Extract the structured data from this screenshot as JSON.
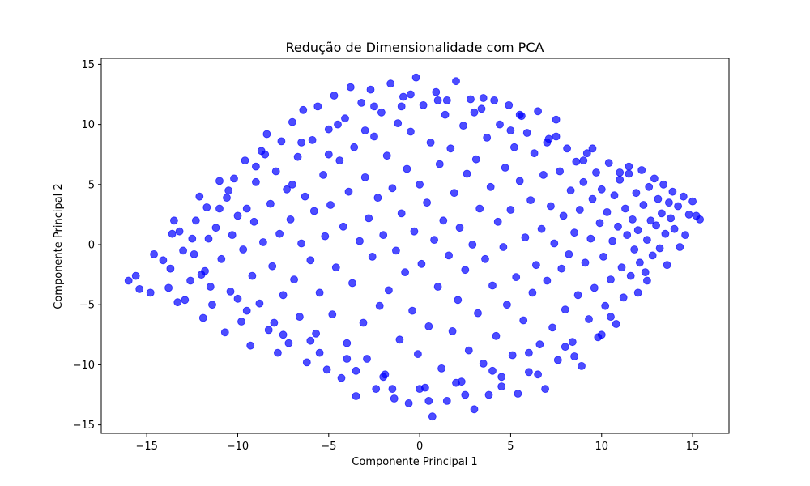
{
  "chart_data": {
    "type": "scatter",
    "title": "Redução de Dimensionalidade com PCA",
    "xlabel": "Componente Principal 1",
    "ylabel": "Componente Principal 2",
    "xlim": [
      -17.5,
      17
    ],
    "ylim": [
      -15.7,
      15.5
    ],
    "xticks": [
      -15,
      -10,
      -5,
      0,
      5,
      10,
      15
    ],
    "yticks": [
      -15,
      -10,
      -5,
      0,
      5,
      10,
      15
    ],
    "xtick_labels": [
      "−15",
      "−10",
      "−5",
      "0",
      "5",
      "10",
      "15"
    ],
    "ytick_labels": [
      "−15",
      "−10",
      "−5",
      "0",
      "5",
      "10",
      "15"
    ],
    "grid": false,
    "legend": "none",
    "color": "#0000ff",
    "alpha": 0.7,
    "series": [
      {
        "values": [
          [
            -16.0,
            -3.0
          ],
          [
            -15.6,
            -2.6
          ],
          [
            -15.4,
            -3.7
          ],
          [
            -14.8,
            -4.0
          ],
          [
            -14.6,
            -0.8
          ],
          [
            -14.1,
            -1.3
          ],
          [
            -13.8,
            -3.6
          ],
          [
            -13.7,
            -2.0
          ],
          [
            -13.6,
            0.9
          ],
          [
            -13.5,
            2.0
          ],
          [
            -13.3,
            -4.8
          ],
          [
            -13.2,
            1.1
          ],
          [
            -12.9,
            -4.6
          ],
          [
            -12.6,
            -3.0
          ],
          [
            -12.4,
            -0.8
          ],
          [
            -12.3,
            2.0
          ],
          [
            -12.1,
            4.0
          ],
          [
            -11.9,
            -6.1
          ],
          [
            -11.8,
            -2.2
          ],
          [
            -11.7,
            3.1
          ],
          [
            -11.6,
            0.5
          ],
          [
            -11.4,
            -5.0
          ],
          [
            -11.2,
            1.4
          ],
          [
            -11.0,
            5.3
          ],
          [
            -10.9,
            -1.2
          ],
          [
            -10.7,
            -7.3
          ],
          [
            -10.6,
            3.9
          ],
          [
            -10.4,
            -3.9
          ],
          [
            -10.3,
            0.8
          ],
          [
            -10.2,
            5.5
          ],
          [
            -10.0,
            2.4
          ],
          [
            -9.8,
            -6.4
          ],
          [
            -9.7,
            -0.4
          ],
          [
            -9.6,
            7.0
          ],
          [
            -9.5,
            3.0
          ],
          [
            -9.3,
            -8.4
          ],
          [
            -9.2,
            -2.6
          ],
          [
            -9.1,
            1.9
          ],
          [
            -9.0,
            5.2
          ],
          [
            -8.8,
            -4.9
          ],
          [
            -8.7,
            7.8
          ],
          [
            -8.6,
            0.2
          ],
          [
            -8.4,
            9.2
          ],
          [
            -8.3,
            -7.1
          ],
          [
            -8.2,
            3.4
          ],
          [
            -8.1,
            -1.8
          ],
          [
            -7.9,
            6.1
          ],
          [
            -7.8,
            -9.0
          ],
          [
            -7.7,
            0.9
          ],
          [
            -7.6,
            8.6
          ],
          [
            -7.5,
            -4.2
          ],
          [
            -7.3,
            4.6
          ],
          [
            -7.2,
            -8.2
          ],
          [
            -7.1,
            2.1
          ],
          [
            -7.0,
            10.2
          ],
          [
            -6.9,
            -2.9
          ],
          [
            -6.7,
            7.3
          ],
          [
            -6.6,
            -6.0
          ],
          [
            -6.5,
            0.1
          ],
          [
            -6.4,
            11.2
          ],
          [
            -6.3,
            4.0
          ],
          [
            -6.2,
            -9.8
          ],
          [
            -6.0,
            -1.3
          ],
          [
            -5.9,
            8.7
          ],
          [
            -5.8,
            2.8
          ],
          [
            -5.7,
            -7.4
          ],
          [
            -5.6,
            11.5
          ],
          [
            -5.5,
            -4.0
          ],
          [
            -5.3,
            5.8
          ],
          [
            -5.2,
            0.7
          ],
          [
            -5.1,
            -10.4
          ],
          [
            -5.0,
            9.6
          ],
          [
            -4.9,
            3.3
          ],
          [
            -4.8,
            -5.8
          ],
          [
            -4.7,
            12.4
          ],
          [
            -4.6,
            -1.9
          ],
          [
            -4.4,
            7.0
          ],
          [
            -4.3,
            -11.1
          ],
          [
            -4.2,
            1.5
          ],
          [
            -4.1,
            10.5
          ],
          [
            -4.0,
            -8.2
          ],
          [
            -3.9,
            4.4
          ],
          [
            -3.8,
            13.1
          ],
          [
            -3.7,
            -3.2
          ],
          [
            -3.6,
            8.1
          ],
          [
            -3.5,
            -12.6
          ],
          [
            -3.3,
            0.3
          ],
          [
            -3.2,
            11.8
          ],
          [
            -3.1,
            -6.5
          ],
          [
            -3.0,
            5.6
          ],
          [
            -2.9,
            -9.5
          ],
          [
            -2.8,
            2.2
          ],
          [
            -2.7,
            12.9
          ],
          [
            -2.6,
            -1.0
          ],
          [
            -2.5,
            9.0
          ],
          [
            -2.4,
            -12.0
          ],
          [
            -2.3,
            3.9
          ],
          [
            -2.2,
            -5.1
          ],
          [
            -2.1,
            11.0
          ],
          [
            -2.0,
            0.8
          ],
          [
            -1.9,
            -10.8
          ],
          [
            -1.8,
            7.4
          ],
          [
            -1.7,
            -3.8
          ],
          [
            -1.6,
            13.4
          ],
          [
            -1.5,
            4.7
          ],
          [
            -1.4,
            -12.8
          ],
          [
            -1.3,
            -0.5
          ],
          [
            -1.2,
            10.1
          ],
          [
            -1.1,
            -7.9
          ],
          [
            -1.0,
            2.6
          ],
          [
            -0.9,
            12.3
          ],
          [
            -0.8,
            -2.3
          ],
          [
            -0.7,
            6.3
          ],
          [
            -0.6,
            -13.2
          ],
          [
            -0.5,
            9.4
          ],
          [
            -0.4,
            -5.5
          ],
          [
            -0.3,
            1.1
          ],
          [
            -0.2,
            13.9
          ],
          [
            -0.1,
            -9.1
          ],
          [
            0.0,
            5.0
          ],
          [
            0.1,
            -1.6
          ],
          [
            0.2,
            11.6
          ],
          [
            0.3,
            -11.9
          ],
          [
            0.4,
            3.5
          ],
          [
            0.5,
            -6.8
          ],
          [
            0.6,
            8.5
          ],
          [
            0.7,
            -14.3
          ],
          [
            0.8,
            0.4
          ],
          [
            0.9,
            12.7
          ],
          [
            1.0,
            -3.5
          ],
          [
            1.1,
            6.7
          ],
          [
            1.2,
            -10.3
          ],
          [
            1.3,
            2.0
          ],
          [
            1.4,
            10.8
          ],
          [
            1.5,
            -13.0
          ],
          [
            1.6,
            -0.9
          ],
          [
            1.7,
            8.0
          ],
          [
            1.8,
            -7.2
          ],
          [
            1.9,
            4.3
          ],
          [
            2.0,
            13.6
          ],
          [
            2.1,
            -4.6
          ],
          [
            2.2,
            1.4
          ],
          [
            2.3,
            -11.4
          ],
          [
            2.4,
            9.9
          ],
          [
            2.5,
            -2.1
          ],
          [
            2.6,
            5.9
          ],
          [
            2.7,
            -8.8
          ],
          [
            2.8,
            12.1
          ],
          [
            2.9,
            0.0
          ],
          [
            3.0,
            -13.7
          ],
          [
            3.1,
            7.1
          ],
          [
            3.2,
            -5.7
          ],
          [
            3.3,
            3.0
          ],
          [
            3.4,
            11.3
          ],
          [
            3.5,
            -9.9
          ],
          [
            3.6,
            -1.2
          ],
          [
            3.7,
            8.9
          ],
          [
            3.8,
            -12.5
          ],
          [
            3.9,
            4.8
          ],
          [
            4.0,
            -3.4
          ],
          [
            4.1,
            12.0
          ],
          [
            4.2,
            -7.6
          ],
          [
            4.3,
            1.9
          ],
          [
            4.4,
            10.0
          ],
          [
            4.5,
            -11.0
          ],
          [
            4.6,
            -0.2
          ],
          [
            4.7,
            6.4
          ],
          [
            4.8,
            -5.0
          ],
          [
            4.9,
            11.6
          ],
          [
            5.0,
            2.9
          ],
          [
            5.1,
            -9.2
          ],
          [
            5.2,
            8.1
          ],
          [
            5.3,
            -2.7
          ],
          [
            5.4,
            -12.4
          ],
          [
            5.5,
            5.3
          ],
          [
            5.6,
            10.7
          ],
          [
            5.7,
            -6.3
          ],
          [
            5.8,
            0.6
          ],
          [
            5.9,
            9.3
          ],
          [
            6.0,
            -10.6
          ],
          [
            6.1,
            3.7
          ],
          [
            6.2,
            -4.0
          ],
          [
            6.3,
            7.6
          ],
          [
            6.4,
            -1.7
          ],
          [
            6.5,
            11.1
          ],
          [
            6.6,
            -8.3
          ],
          [
            6.7,
            1.3
          ],
          [
            6.8,
            5.8
          ],
          [
            6.9,
            -12.0
          ],
          [
            7.0,
            -3.0
          ],
          [
            7.1,
            8.8
          ],
          [
            7.2,
            3.2
          ],
          [
            7.3,
            -6.9
          ],
          [
            7.4,
            0.1
          ],
          [
            7.5,
            10.4
          ],
          [
            7.6,
            -9.6
          ],
          [
            7.7,
            6.1
          ],
          [
            7.8,
            -2.0
          ],
          [
            7.9,
            2.4
          ],
          [
            8.0,
            -5.4
          ],
          [
            8.1,
            8.0
          ],
          [
            8.2,
            -0.8
          ],
          [
            8.3,
            4.5
          ],
          [
            8.4,
            -8.1
          ],
          [
            8.5,
            1.0
          ],
          [
            8.6,
            6.9
          ],
          [
            8.7,
            -4.2
          ],
          [
            8.8,
            2.9
          ],
          [
            8.9,
            -10.1
          ],
          [
            9.0,
            5.2
          ],
          [
            9.1,
            -1.5
          ],
          [
            9.2,
            7.6
          ],
          [
            9.3,
            -6.2
          ],
          [
            9.4,
            0.5
          ],
          [
            9.5,
            3.8
          ],
          [
            9.6,
            -3.6
          ],
          [
            9.7,
            6.0
          ],
          [
            9.8,
            -7.7
          ],
          [
            9.9,
            1.8
          ],
          [
            10.0,
            4.6
          ],
          [
            10.1,
            -1.0
          ],
          [
            10.2,
            -5.1
          ],
          [
            10.3,
            2.7
          ],
          [
            10.4,
            6.8
          ],
          [
            10.5,
            -2.9
          ],
          [
            10.6,
            0.3
          ],
          [
            10.7,
            4.1
          ],
          [
            10.8,
            -6.6
          ],
          [
            10.9,
            1.5
          ],
          [
            11.0,
            5.4
          ],
          [
            11.1,
            -1.9
          ],
          [
            11.2,
            -4.4
          ],
          [
            11.3,
            3.0
          ],
          [
            11.4,
            0.8
          ],
          [
            11.5,
            5.9
          ],
          [
            11.6,
            -2.6
          ],
          [
            11.7,
            2.1
          ],
          [
            11.8,
            -0.4
          ],
          [
            11.9,
            4.3
          ],
          [
            12.0,
            1.2
          ],
          [
            12.1,
            -1.5
          ],
          [
            12.2,
            6.2
          ],
          [
            12.3,
            3.3
          ],
          [
            12.4,
            -2.3
          ],
          [
            12.5,
            0.4
          ],
          [
            12.6,
            4.8
          ],
          [
            12.7,
            2.0
          ],
          [
            12.8,
            -0.9
          ],
          [
            12.9,
            5.5
          ],
          [
            13.0,
            1.6
          ],
          [
            13.1,
            3.8
          ],
          [
            13.2,
            -0.3
          ],
          [
            13.3,
            2.6
          ],
          [
            13.4,
            5.0
          ],
          [
            13.5,
            0.9
          ],
          [
            13.6,
            -1.7
          ],
          [
            13.7,
            3.5
          ],
          [
            13.8,
            2.2
          ],
          [
            13.9,
            4.4
          ],
          [
            14.0,
            1.3
          ],
          [
            14.2,
            3.2
          ],
          [
            14.3,
            -0.2
          ],
          [
            14.5,
            4.0
          ],
          [
            14.6,
            0.8
          ],
          [
            14.8,
            2.5
          ],
          [
            15.0,
            3.6
          ],
          [
            15.2,
            2.4
          ],
          [
            15.4,
            2.1
          ],
          [
            -13.0,
            -0.5
          ],
          [
            -12.0,
            -2.5
          ],
          [
            -11.0,
            3.0
          ],
          [
            -10.0,
            -4.5
          ],
          [
            -9.0,
            6.5
          ],
          [
            -8.0,
            -6.5
          ],
          [
            -7.0,
            5.0
          ],
          [
            -6.0,
            -8.0
          ],
          [
            -5.0,
            7.5
          ],
          [
            -4.0,
            -9.5
          ],
          [
            -3.0,
            9.5
          ],
          [
            -2.0,
            -11.0
          ],
          [
            -1.0,
            11.5
          ],
          [
            0.0,
            -12.0
          ],
          [
            1.0,
            12.0
          ],
          [
            2.0,
            -11.5
          ],
          [
            3.0,
            11.0
          ],
          [
            4.0,
            -10.5
          ],
          [
            5.0,
            9.5
          ],
          [
            6.0,
            -9.0
          ],
          [
            7.0,
            8.5
          ],
          [
            8.0,
            -8.5
          ],
          [
            9.0,
            7.0
          ],
          [
            10.0,
            -7.5
          ],
          [
            11.0,
            6.0
          ],
          [
            12.0,
            -4.0
          ],
          [
            -12.5,
            0.5
          ],
          [
            -11.5,
            -3.5
          ],
          [
            -10.5,
            4.5
          ],
          [
            -9.5,
            -5.5
          ],
          [
            -8.5,
            7.5
          ],
          [
            -7.5,
            -7.5
          ],
          [
            -6.5,
            8.5
          ],
          [
            -5.5,
            -9.0
          ],
          [
            -4.5,
            10.0
          ],
          [
            -3.5,
            -10.5
          ],
          [
            -2.5,
            11.5
          ],
          [
            -1.5,
            -12.0
          ],
          [
            -0.5,
            12.5
          ],
          [
            0.5,
            -13.0
          ],
          [
            1.5,
            12.0
          ],
          [
            2.5,
            -12.5
          ],
          [
            3.5,
            12.2
          ],
          [
            4.5,
            -11.8
          ],
          [
            5.5,
            10.8
          ],
          [
            6.5,
            -10.8
          ],
          [
            7.5,
            9.0
          ],
          [
            8.5,
            -9.3
          ],
          [
            9.5,
            8.0
          ],
          [
            10.5,
            -6.0
          ],
          [
            11.5,
            6.5
          ],
          [
            12.5,
            -3.0
          ]
        ]
      }
    ]
  }
}
